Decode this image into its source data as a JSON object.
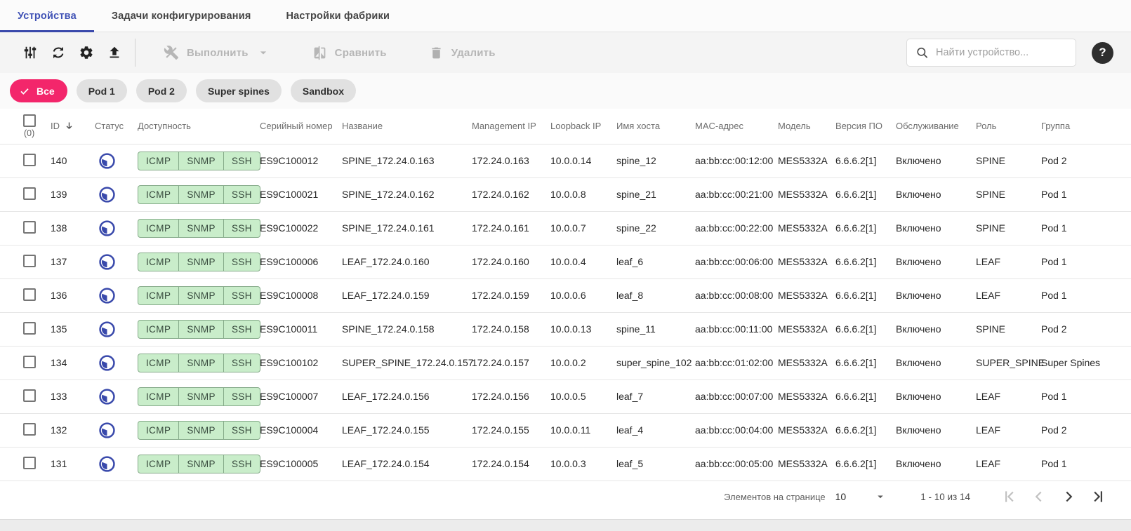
{
  "tabs": [
    {
      "label": "Устройства",
      "active": true
    },
    {
      "label": "Задачи конфигурирования",
      "active": false
    },
    {
      "label": "Настройки фабрики",
      "active": false
    }
  ],
  "toolbar": {
    "execute_label": "Выполнить",
    "compare_label": "Сравнить",
    "delete_label": "Удалить",
    "search_placeholder": "Найти устройство...",
    "help_glyph": "?",
    "icons": [
      "tune-icon",
      "refresh-icon",
      "settings-gear-icon",
      "upload-icon"
    ]
  },
  "filters": {
    "chips": [
      {
        "label": "Все",
        "selected": true
      },
      {
        "label": "Pod 1",
        "selected": false
      },
      {
        "label": "Pod 2",
        "selected": false
      },
      {
        "label": "Super spines",
        "selected": false
      },
      {
        "label": "Sandbox",
        "selected": false
      }
    ]
  },
  "table": {
    "selected_count": "(0)",
    "sort_column": "ID",
    "sort_direction": "desc",
    "columns": [
      {
        "key": "id",
        "label": "ID"
      },
      {
        "key": "status",
        "label": "Статус"
      },
      {
        "key": "availability",
        "label": "Доступность"
      },
      {
        "key": "serial",
        "label": "Серийный номер"
      },
      {
        "key": "name",
        "label": "Название"
      },
      {
        "key": "management_ip",
        "label": "Management IP"
      },
      {
        "key": "loopback_ip",
        "label": "Loopback IP"
      },
      {
        "key": "hostname",
        "label": "Имя хоста"
      },
      {
        "key": "mac",
        "label": "MAC-адрес"
      },
      {
        "key": "model",
        "label": "Модель"
      },
      {
        "key": "fw_version",
        "label": "Версия ПО"
      },
      {
        "key": "maintenance",
        "label": "Обслуживание"
      },
      {
        "key": "role",
        "label": "Роль"
      },
      {
        "key": "group",
        "label": "Группа"
      }
    ],
    "rows": [
      {
        "id": "140",
        "availability": [
          "ICMP",
          "SNMP",
          "SSH"
        ],
        "serial": "ES9C100012",
        "name": "SPINE_172.24.0.163",
        "management_ip": "172.24.0.163",
        "loopback_ip": "10.0.0.14",
        "hostname": "spine_12",
        "mac": "aa:bb:cc:00:12:00",
        "model": "MES5332A",
        "fw_version": "6.6.6.2[1]",
        "maintenance": "Включено",
        "role": "SPINE",
        "group": "Pod 2"
      },
      {
        "id": "139",
        "availability": [
          "ICMP",
          "SNMP",
          "SSH"
        ],
        "serial": "ES9C100021",
        "name": "SPINE_172.24.0.162",
        "management_ip": "172.24.0.162",
        "loopback_ip": "10.0.0.8",
        "hostname": "spine_21",
        "mac": "aa:bb:cc:00:21:00",
        "model": "MES5332A",
        "fw_version": "6.6.6.2[1]",
        "maintenance": "Включено",
        "role": "SPINE",
        "group": "Pod 1"
      },
      {
        "id": "138",
        "availability": [
          "ICMP",
          "SNMP",
          "SSH"
        ],
        "serial": "ES9C100022",
        "name": "SPINE_172.24.0.161",
        "management_ip": "172.24.0.161",
        "loopback_ip": "10.0.0.7",
        "hostname": "spine_22",
        "mac": "aa:bb:cc:00:22:00",
        "model": "MES5332A",
        "fw_version": "6.6.6.2[1]",
        "maintenance": "Включено",
        "role": "SPINE",
        "group": "Pod 1"
      },
      {
        "id": "137",
        "availability": [
          "ICMP",
          "SNMP",
          "SSH"
        ],
        "serial": "ES9C100006",
        "name": "LEAF_172.24.0.160",
        "management_ip": "172.24.0.160",
        "loopback_ip": "10.0.0.4",
        "hostname": "leaf_6",
        "mac": "aa:bb:cc:00:06:00",
        "model": "MES5332A",
        "fw_version": "6.6.6.2[1]",
        "maintenance": "Включено",
        "role": "LEAF",
        "group": "Pod 1"
      },
      {
        "id": "136",
        "availability": [
          "ICMP",
          "SNMP",
          "SSH"
        ],
        "serial": "ES9C100008",
        "name": "LEAF_172.24.0.159",
        "management_ip": "172.24.0.159",
        "loopback_ip": "10.0.0.6",
        "hostname": "leaf_8",
        "mac": "aa:bb:cc:00:08:00",
        "model": "MES5332A",
        "fw_version": "6.6.6.2[1]",
        "maintenance": "Включено",
        "role": "LEAF",
        "group": "Pod 1"
      },
      {
        "id": "135",
        "availability": [
          "ICMP",
          "SNMP",
          "SSH"
        ],
        "serial": "ES9C100011",
        "name": "SPINE_172.24.0.158",
        "management_ip": "172.24.0.158",
        "loopback_ip": "10.0.0.13",
        "hostname": "spine_11",
        "mac": "aa:bb:cc:00:11:00",
        "model": "MES5332A",
        "fw_version": "6.6.6.2[1]",
        "maintenance": "Включено",
        "role": "SPINE",
        "group": "Pod 2"
      },
      {
        "id": "134",
        "availability": [
          "ICMP",
          "SNMP",
          "SSH"
        ],
        "serial": "ES9C100102",
        "name": "SUPER_SPINE_172.24.0.157",
        "management_ip": "172.24.0.157",
        "loopback_ip": "10.0.0.2",
        "hostname": "super_spine_102",
        "mac": "aa:bb:cc:01:02:00",
        "model": "MES5332A",
        "fw_version": "6.6.6.2[1]",
        "maintenance": "Включено",
        "role": "SUPER_SPINE",
        "group": "Super Spines"
      },
      {
        "id": "133",
        "availability": [
          "ICMP",
          "SNMP",
          "SSH"
        ],
        "serial": "ES9C100007",
        "name": "LEAF_172.24.0.156",
        "management_ip": "172.24.0.156",
        "loopback_ip": "10.0.0.5",
        "hostname": "leaf_7",
        "mac": "aa:bb:cc:00:07:00",
        "model": "MES5332A",
        "fw_version": "6.6.6.2[1]",
        "maintenance": "Включено",
        "role": "LEAF",
        "group": "Pod 1"
      },
      {
        "id": "132",
        "availability": [
          "ICMP",
          "SNMP",
          "SSH"
        ],
        "serial": "ES9C100004",
        "name": "LEAF_172.24.0.155",
        "management_ip": "172.24.0.155",
        "loopback_ip": "10.0.0.11",
        "hostname": "leaf_4",
        "mac": "aa:bb:cc:00:04:00",
        "model": "MES5332A",
        "fw_version": "6.6.6.2[1]",
        "maintenance": "Включено",
        "role": "LEAF",
        "group": "Pod 2"
      },
      {
        "id": "131",
        "availability": [
          "ICMP",
          "SNMP",
          "SSH"
        ],
        "serial": "ES9C100005",
        "name": "LEAF_172.24.0.154",
        "management_ip": "172.24.0.154",
        "loopback_ip": "10.0.0.3",
        "hostname": "leaf_5",
        "mac": "aa:bb:cc:00:05:00",
        "model": "MES5332A",
        "fw_version": "6.6.6.2[1]",
        "maintenance": "Включено",
        "role": "LEAF",
        "group": "Pod 1"
      }
    ]
  },
  "pagination": {
    "items_per_page_label": "Элементов на странице",
    "items_per_page": "10",
    "range_label": "1 - 10 из 14"
  },
  "colors": {
    "accent_pink": "#f3266b",
    "tab_active_blue": "#3f51b5",
    "status_icon_blue": "#3949ab",
    "availability_bg": "#c9edca",
    "availability_border": "#86ab8a",
    "availability_text": "#36493c"
  }
}
